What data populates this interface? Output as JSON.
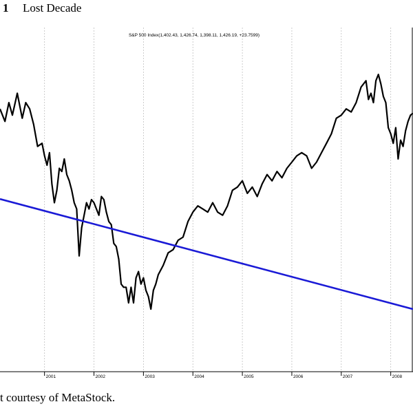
{
  "figure": {
    "number": "1",
    "title": "Lost Decade",
    "caption": "t courtesy of MetaStock."
  },
  "colors": {
    "price_line": "#000000",
    "trend_line": "#1a1ad6",
    "grid": "#bfbfbf"
  },
  "chart_data": {
    "type": "line",
    "title": "S&P 500 Index(1,402.43, 1,426.74, 1,398.11, 1,426.19, +23.7599)",
    "x_tick_labels": [
      "2001",
      "2002",
      "2003",
      "2004",
      "2005",
      "2006",
      "2007",
      "2008"
    ],
    "x_range": [
      2000.1,
      2008.45
    ],
    "y_range": [
      600,
      1700
    ],
    "grid": "vertical dashed at year boundaries",
    "series": [
      {
        "role": "price",
        "x": [
          2000.1,
          2000.2,
          2000.28,
          2000.35,
          2000.45,
          2000.55,
          2000.62,
          2000.7,
          2000.78,
          2000.86,
          2000.95,
          2001.0,
          2001.05,
          2001.1,
          2001.15,
          2001.2,
          2001.25,
          2001.3,
          2001.35,
          2001.4,
          2001.45,
          2001.5,
          2001.55,
          2001.6,
          2001.65,
          2001.7,
          2001.75,
          2001.8,
          2001.85,
          2001.9,
          2001.95,
          2002.0,
          2002.05,
          2002.1,
          2002.15,
          2002.2,
          2002.25,
          2002.3,
          2002.35,
          2002.4,
          2002.45,
          2002.5,
          2002.55,
          2002.6,
          2002.65,
          2002.7,
          2002.75,
          2002.8,
          2002.85,
          2002.9,
          2002.95,
          2003.0,
          2003.05,
          2003.1,
          2003.15,
          2003.2,
          2003.25,
          2003.3,
          2003.4,
          2003.5,
          2003.6,
          2003.7,
          2003.8,
          2003.9,
          2004.0,
          2004.1,
          2004.2,
          2004.3,
          2004.4,
          2004.5,
          2004.6,
          2004.7,
          2004.8,
          2004.9,
          2005.0,
          2005.1,
          2005.2,
          2005.3,
          2005.4,
          2005.5,
          2005.6,
          2005.7,
          2005.8,
          2005.9,
          2006.0,
          2006.1,
          2006.2,
          2006.3,
          2006.4,
          2006.5,
          2006.6,
          2006.7,
          2006.8,
          2006.9,
          2007.0,
          2007.1,
          2007.2,
          2007.3,
          2007.4,
          2007.5,
          2007.55,
          2007.6,
          2007.65,
          2007.7,
          2007.75,
          2007.8,
          2007.85,
          2007.9,
          2007.95,
          2008.0,
          2008.05,
          2008.1,
          2008.15,
          2008.2,
          2008.25,
          2008.3,
          2008.35,
          2008.4,
          2008.45
        ],
        "y": [
          1440,
          1400,
          1460,
          1420,
          1490,
          1410,
          1460,
          1440,
          1390,
          1320,
          1330,
          1290,
          1260,
          1300,
          1200,
          1140,
          1180,
          1250,
          1240,
          1280,
          1230,
          1210,
          1180,
          1140,
          1120,
          970,
          1060,
          1100,
          1140,
          1120,
          1150,
          1140,
          1120,
          1100,
          1160,
          1150,
          1110,
          1080,
          1070,
          1010,
          1000,
          960,
          880,
          870,
          870,
          820,
          870,
          820,
          900,
          920,
          880,
          900,
          860,
          840,
          800,
          860,
          880,
          910,
          940,
          980,
          990,
          1020,
          1030,
          1080,
          1110,
          1130,
          1120,
          1110,
          1140,
          1110,
          1100,
          1130,
          1180,
          1190,
          1210,
          1170,
          1190,
          1160,
          1200,
          1230,
          1210,
          1240,
          1220,
          1250,
          1270,
          1290,
          1300,
          1290,
          1250,
          1270,
          1300,
          1330,
          1360,
          1410,
          1420,
          1440,
          1430,
          1460,
          1510,
          1530,
          1470,
          1490,
          1460,
          1530,
          1550,
          1520,
          1480,
          1460,
          1380,
          1360,
          1330,
          1380,
          1280,
          1340,
          1320,
          1370,
          1400,
          1420,
          1426
        ]
      },
      {
        "role": "trendline",
        "x": [
          2000.1,
          2008.45
        ],
        "y": [
          1152,
          800
        ]
      }
    ]
  }
}
